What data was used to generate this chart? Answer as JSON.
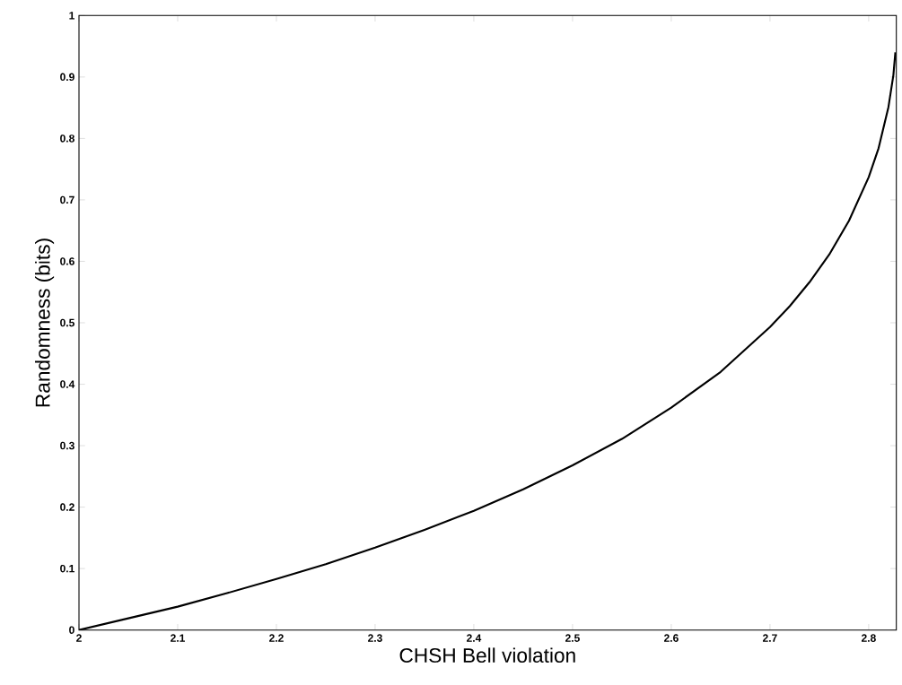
{
  "chart_data": {
    "type": "line",
    "xlabel": "CHSH Bell violation",
    "ylabel": "Randomness (bits)",
    "xlim": [
      2,
      2.828
    ],
    "ylim": [
      0,
      1
    ],
    "xticks": [
      2,
      2.1,
      2.2,
      2.3,
      2.4,
      2.5,
      2.6,
      2.7,
      2.8
    ],
    "yticks": [
      0,
      0.1,
      0.2,
      0.3,
      0.4,
      0.5,
      0.6,
      0.7,
      0.8,
      0.9,
      1
    ],
    "x": [
      2.0,
      2.05,
      2.1,
      2.15,
      2.2,
      2.25,
      2.3,
      2.35,
      2.4,
      2.45,
      2.5,
      2.55,
      2.6,
      2.65,
      2.7,
      2.72,
      2.74,
      2.76,
      2.78,
      2.8,
      2.81,
      2.82,
      2.825,
      2.827
    ],
    "series": [
      {
        "color": "#000000",
        "values": [
          0.0,
          0.019,
          0.038,
          0.06,
          0.083,
          0.107,
          0.134,
          0.163,
          0.194,
          0.229,
          0.268,
          0.311,
          0.362,
          0.42,
          0.493,
          0.527,
          0.566,
          0.611,
          0.666,
          0.737,
          0.784,
          0.851,
          0.903,
          0.94
        ]
      }
    ],
    "grid": false,
    "marker": "none",
    "line_style": "solid"
  }
}
